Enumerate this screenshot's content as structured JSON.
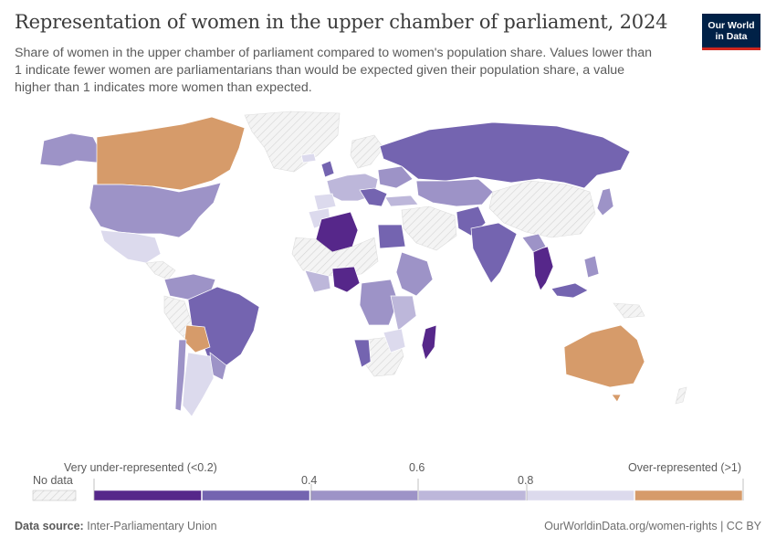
{
  "header": {
    "title": "Representation of women in the upper chamber of parliament, 2024",
    "subtitle": "Share of women in the upper chamber of parliament compared to women's population share. Values lower than 1 indicate fewer women are parliamentarians than would be expected given their population share, a value higher than 1 indicates more women than expected.",
    "logo_line1": "Our World",
    "logo_line2": "in Data"
  },
  "legend": {
    "no_data_label": "No data",
    "bins": [
      {
        "label": "Very under-represented (<0.2)",
        "color": "#56278a"
      },
      {
        "label": "0.4",
        "color": "#7464b0"
      },
      {
        "label": "0.6",
        "color": "#9d93c7"
      },
      {
        "label": "0.8",
        "color": "#bdb7da"
      },
      {
        "label": "Over-represented (>1)",
        "color": "#dcdaed"
      },
      {
        "label": "",
        "color": "#d69b6a"
      }
    ]
  },
  "footer": {
    "source_label": "Data source:",
    "source_text": "Inter-Parliamentary Union",
    "credit": "OurWorldinData.org/women-rights | CC BY"
  },
  "map_data": {
    "colors": {
      "very_low": "#56278a",
      "low": "#7464b0",
      "mid": "#9d93c7",
      "high": "#bdb7da",
      "near_parity": "#dcdaed",
      "over": "#d69b6a",
      "no_data": "#f2f2f2",
      "border": "#ffffff"
    },
    "regions": [
      {
        "name": "Canada",
        "class": "over"
      },
      {
        "name": "United States",
        "class": "mid"
      },
      {
        "name": "Mexico",
        "class": "near_parity"
      },
      {
        "name": "Brazil",
        "class": "low"
      },
      {
        "name": "Bolivia",
        "class": "over"
      },
      {
        "name": "Argentina",
        "class": "near_parity"
      },
      {
        "name": "Russia",
        "class": "low"
      },
      {
        "name": "Kazakhstan",
        "class": "mid"
      },
      {
        "name": "Algeria",
        "class": "very_low"
      },
      {
        "name": "Nigeria",
        "class": "very_low"
      },
      {
        "name": "Egypt",
        "class": "low"
      },
      {
        "name": "India",
        "class": "low"
      },
      {
        "name": "Thailand",
        "class": "very_low"
      },
      {
        "name": "Madagascar",
        "class": "very_low"
      },
      {
        "name": "Australia",
        "class": "over"
      },
      {
        "name": "Namibia",
        "class": "low"
      }
    ]
  }
}
